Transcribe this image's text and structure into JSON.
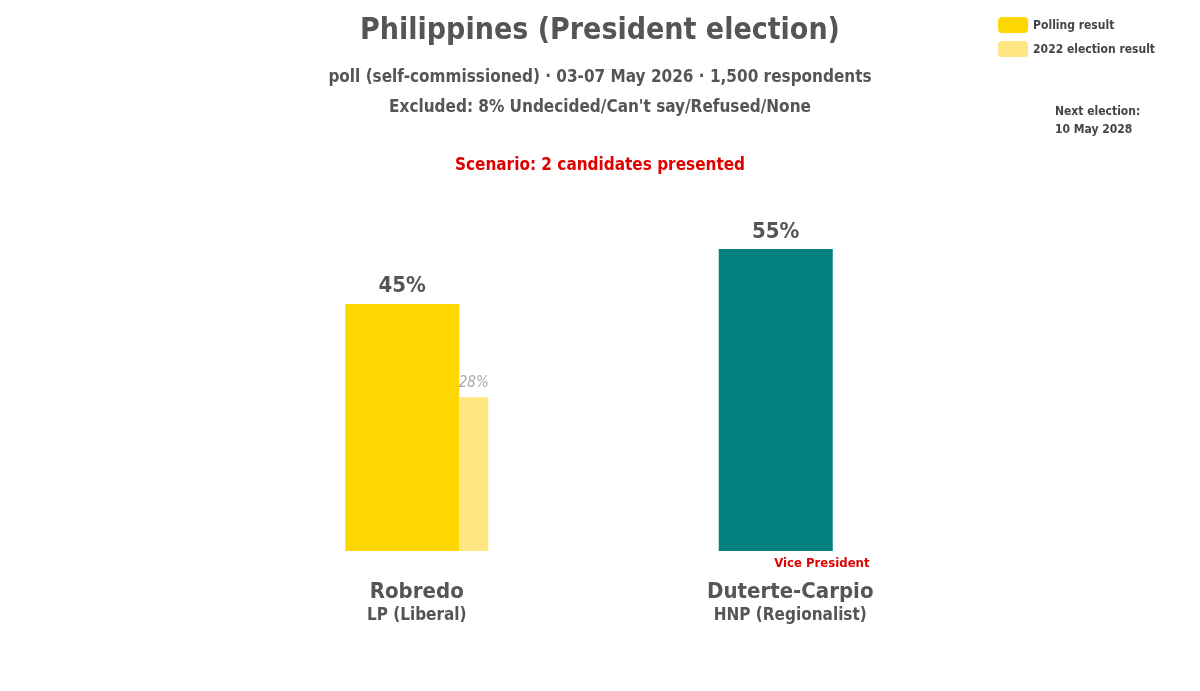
{
  "chart_data": {
    "type": "bar",
    "title": "Philippines (President election)",
    "subtitle": "poll (self-commissioned) · 03-07 May 2026 · 1,500 respondents\nExcluded: 8% Undecided/Can't say/Refused/None",
    "categories": [
      "Robredo\nLP (Liberal)",
      "Duterte-Carpio\nHNP (Regionalist)"
    ],
    "series": [
      {
        "name": "Polling result",
        "colors": [
          "#ffd700",
          "#008080"
        ],
        "values": [
          45,
          55
        ],
        "value_labels": [
          "45%",
          "55%"
        ]
      },
      {
        "name": "2022 election result",
        "colors": [
          "#ffe680",
          "#ffe680"
        ],
        "values": [
          28,
          null
        ],
        "value_labels": [
          "28%",
          null
        ]
      }
    ],
    "legend": "top right",
    "annotations": [
      "Scenario: 2 candidates presented",
      {
        "text": "Vice President",
        "x": "Duterte-Carpio\nHNP (Regionalist)",
        "y": 0
      },
      "Next election:\n10 May 2028"
    ]
  }
}
